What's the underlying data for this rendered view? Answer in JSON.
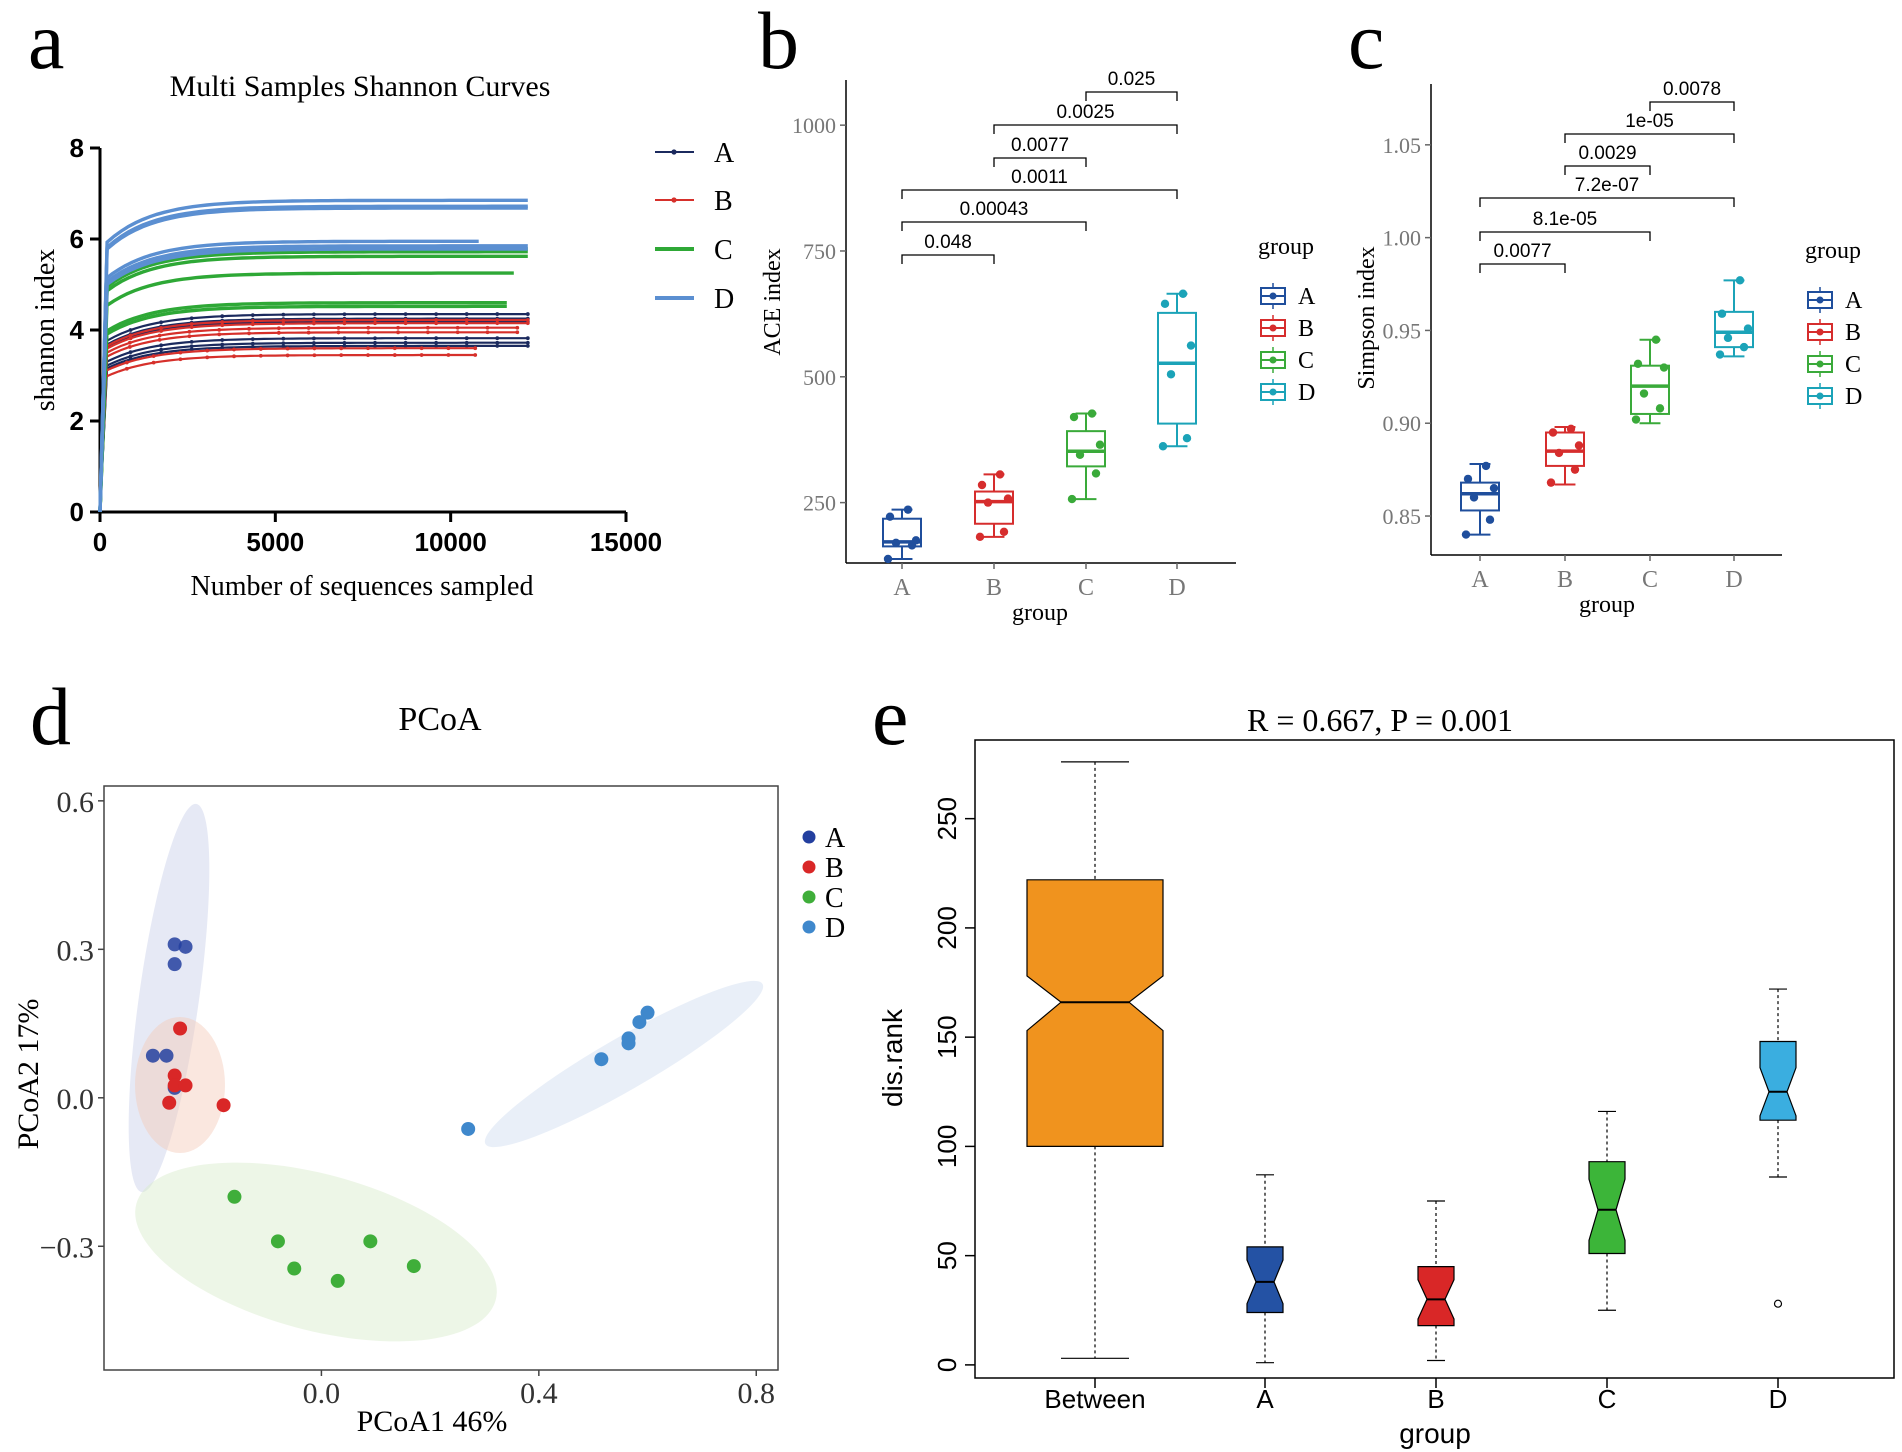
{
  "chart_data": [
    {
      "panel": "a",
      "type": "line",
      "title": "Multi Samples Shannon Curves",
      "xlabel": "Number of sequences sampled",
      "ylabel": "shannon index",
      "xlim": [
        0,
        15000
      ],
      "ylim": [
        0,
        8
      ],
      "xticks": [
        "0",
        "5000",
        "10000",
        "15000"
      ],
      "yticks": [
        "0",
        "2",
        "4",
        "6",
        "8"
      ],
      "legend": [
        "A",
        "B",
        "C",
        "D"
      ],
      "colors": {
        "A": "#1b2a5e",
        "B": "#d6302b",
        "C": "#2ea836",
        "D": "#5b8fd1"
      },
      "series": [
        {
          "name": "A",
          "plateaus": [
            4.35,
            4.25,
            4.18,
            3.82,
            3.72,
            3.65
          ],
          "xmax": [
            12200,
            12200,
            12200,
            12200,
            12200,
            12200
          ]
        },
        {
          "name": "B",
          "plateaus": [
            4.22,
            4.15,
            4.05,
            3.95,
            3.6,
            3.45
          ],
          "xmax": [
            12200,
            12200,
            11900,
            11900,
            10700,
            10700
          ]
        },
        {
          "name": "C",
          "plateaus": [
            5.78,
            5.72,
            5.62,
            5.25,
            4.6,
            4.52
          ],
          "xmax": [
            12200,
            12200,
            12200,
            11800,
            11600,
            11600
          ]
        },
        {
          "name": "D",
          "plateaus": [
            6.85,
            6.72,
            6.68,
            5.95,
            5.85,
            5.78
          ],
          "xmax": [
            12200,
            12200,
            12200,
            10800,
            12200,
            12200
          ]
        }
      ]
    },
    {
      "panel": "b",
      "type": "box",
      "xlabel": "group",
      "ylabel": "ACE index",
      "ylim": [
        130,
        1050
      ],
      "yticks": [
        "250",
        "500",
        "750",
        "1000"
      ],
      "legend_title": "group",
      "categories": [
        "A",
        "B",
        "C",
        "D"
      ],
      "colors": {
        "A": "#1f4e9c",
        "B": "#d62d2d",
        "C": "#3aaa3a",
        "D": "#1ba3b8"
      },
      "boxes": [
        {
          "name": "A",
          "min": 138,
          "q1": 163,
          "median": 172,
          "q3": 218,
          "max": 236,
          "points": [
            138,
            165,
            170,
            175,
            222,
            236
          ]
        },
        {
          "name": "B",
          "min": 182,
          "q1": 208,
          "median": 252,
          "q3": 272,
          "max": 306,
          "points": [
            182,
            192,
            250,
            258,
            285,
            306
          ]
        },
        {
          "name": "C",
          "min": 257,
          "q1": 322,
          "median": 352,
          "q3": 392,
          "max": 427,
          "points": [
            257,
            308,
            345,
            365,
            420,
            427
          ]
        },
        {
          "name": "D",
          "min": 362,
          "q1": 407,
          "median": 527,
          "q3": 627,
          "max": 665,
          "points": [
            362,
            378,
            505,
            562,
            645,
            665
          ]
        }
      ],
      "comparisons": [
        {
          "from": "A",
          "to": "B",
          "p": "0.048"
        },
        {
          "from": "A",
          "to": "C",
          "p": "0.00043"
        },
        {
          "from": "A",
          "to": "D",
          "p": "0.0011"
        },
        {
          "from": "B",
          "to": "C",
          "p": "0.0077"
        },
        {
          "from": "B",
          "to": "D",
          "p": "0.0025"
        },
        {
          "from": "C",
          "to": "D",
          "p": "0.025"
        }
      ]
    },
    {
      "panel": "c",
      "type": "box",
      "xlabel": "group",
      "ylabel": "Simpson index",
      "ylim": [
        0.829,
        1.072
      ],
      "yticks": [
        "0.85",
        "0.90",
        "0.95",
        "1.00",
        "1.05"
      ],
      "legend_title": "group",
      "categories": [
        "A",
        "B",
        "C",
        "D"
      ],
      "colors": {
        "A": "#1f4e9c",
        "B": "#d62d2d",
        "C": "#3aaa3a",
        "D": "#1ba3b8"
      },
      "boxes": [
        {
          "name": "A",
          "min": 0.84,
          "q1": 0.853,
          "median": 0.862,
          "q3": 0.868,
          "max": 0.878,
          "points": [
            0.84,
            0.848,
            0.86,
            0.865,
            0.87,
            0.877
          ]
        },
        {
          "name": "B",
          "min": 0.867,
          "q1": 0.877,
          "median": 0.885,
          "q3": 0.895,
          "max": 0.898,
          "points": [
            0.868,
            0.875,
            0.884,
            0.888,
            0.895,
            0.897
          ]
        },
        {
          "name": "C",
          "min": 0.9,
          "q1": 0.905,
          "median": 0.92,
          "q3": 0.931,
          "max": 0.945,
          "points": [
            0.902,
            0.908,
            0.916,
            0.93,
            0.932,
            0.945
          ]
        },
        {
          "name": "D",
          "min": 0.936,
          "q1": 0.941,
          "median": 0.949,
          "q3": 0.96,
          "max": 0.977,
          "points": [
            0.937,
            0.941,
            0.946,
            0.951,
            0.959,
            0.977
          ]
        }
      ],
      "comparisons": [
        {
          "from": "A",
          "to": "B",
          "p": "0.0077"
        },
        {
          "from": "A",
          "to": "C",
          "p": "8.1e-05"
        },
        {
          "from": "A",
          "to": "D",
          "p": "7.2e-07"
        },
        {
          "from": "B",
          "to": "C",
          "p": "0.0029"
        },
        {
          "from": "B",
          "to": "D",
          "p": "1e-05"
        },
        {
          "from": "C",
          "to": "D",
          "p": "0.0078"
        }
      ]
    },
    {
      "panel": "d",
      "type": "scatter",
      "title": "PCoA",
      "xlabel": "PCoA1 46%",
      "ylabel": "PCoA2 17%",
      "xlim": [
        -0.4,
        0.84
      ],
      "ylim": [
        -0.55,
        0.63
      ],
      "xticks": [
        "0.0",
        "0.4",
        "0.8"
      ],
      "yticks": [
        "0.6",
        "0.3",
        "0.0",
        "−0.3"
      ],
      "legend": [
        "A",
        "B",
        "C",
        "D"
      ],
      "colors": {
        "A": "#233f9f",
        "B": "#d92727",
        "C": "#3fae3a",
        "D": "#3f88cc"
      },
      "series": [
        {
          "name": "A",
          "points": [
            [
              -0.27,
              0.31
            ],
            [
              -0.25,
              0.305
            ],
            [
              -0.27,
              0.27
            ],
            [
              -0.31,
              0.085
            ],
            [
              -0.285,
              0.085
            ],
            [
              -0.27,
              0.02
            ]
          ]
        },
        {
          "name": "B",
          "points": [
            [
              -0.26,
              0.14
            ],
            [
              -0.27,
              0.045
            ],
            [
              -0.27,
              0.025
            ],
            [
              -0.25,
              0.025
            ],
            [
              -0.28,
              -0.01
            ],
            [
              -0.18,
              -0.015
            ]
          ]
        },
        {
          "name": "C",
          "points": [
            [
              -0.16,
              -0.2
            ],
            [
              -0.08,
              -0.29
            ],
            [
              -0.05,
              -0.345
            ],
            [
              0.09,
              -0.29
            ],
            [
              0.03,
              -0.37
            ],
            [
              0.17,
              -0.34
            ]
          ]
        },
        {
          "name": "D",
          "points": [
            [
              0.6,
              0.172
            ],
            [
              0.585,
              0.153
            ],
            [
              0.565,
              0.12
            ],
            [
              0.565,
              0.11
            ],
            [
              0.515,
              0.078
            ],
            [
              0.27,
              -0.063
            ]
          ]
        }
      ]
    },
    {
      "panel": "e",
      "type": "box",
      "title": "R = 0.667,  P = 0.001",
      "xlabel": "group",
      "ylabel": "dis.rank",
      "ylim": [
        -6,
        286
      ],
      "yticks": [
        "0",
        "50",
        "100",
        "150",
        "200",
        "250"
      ],
      "categories": [
        "Between",
        "A",
        "B",
        "C",
        "D"
      ],
      "colors": {
        "Between": "#f0931e",
        "A": "#2452a4",
        "B": "#d92727",
        "C": "#3cb539",
        "D": "#3aaee0"
      },
      "boxes": [
        {
          "name": "Between",
          "min": 3,
          "q1": 100,
          "median": 166,
          "q3": 222,
          "max": 276,
          "notch_low": 153,
          "notch_high": 178
        },
        {
          "name": "A",
          "min": 1,
          "q1": 24,
          "median": 38,
          "q3": 54,
          "max": 87,
          "notch_low": 28,
          "notch_high": 48
        },
        {
          "name": "B",
          "min": 2,
          "q1": 18,
          "median": 30,
          "q3": 45,
          "max": 75,
          "notch_low": 21,
          "notch_high": 39
        },
        {
          "name": "C",
          "min": 25,
          "q1": 51,
          "median": 71,
          "q3": 93,
          "max": 116,
          "notch_low": 57,
          "notch_high": 85
        },
        {
          "name": "D",
          "min": 86,
          "q1": 112,
          "median": 125,
          "q3": 148,
          "max": 172,
          "notch_low": 114,
          "notch_high": 136,
          "outliers": [
            28
          ]
        }
      ]
    }
  ],
  "panel_labels": [
    "a",
    "b",
    "c",
    "d",
    "e"
  ]
}
